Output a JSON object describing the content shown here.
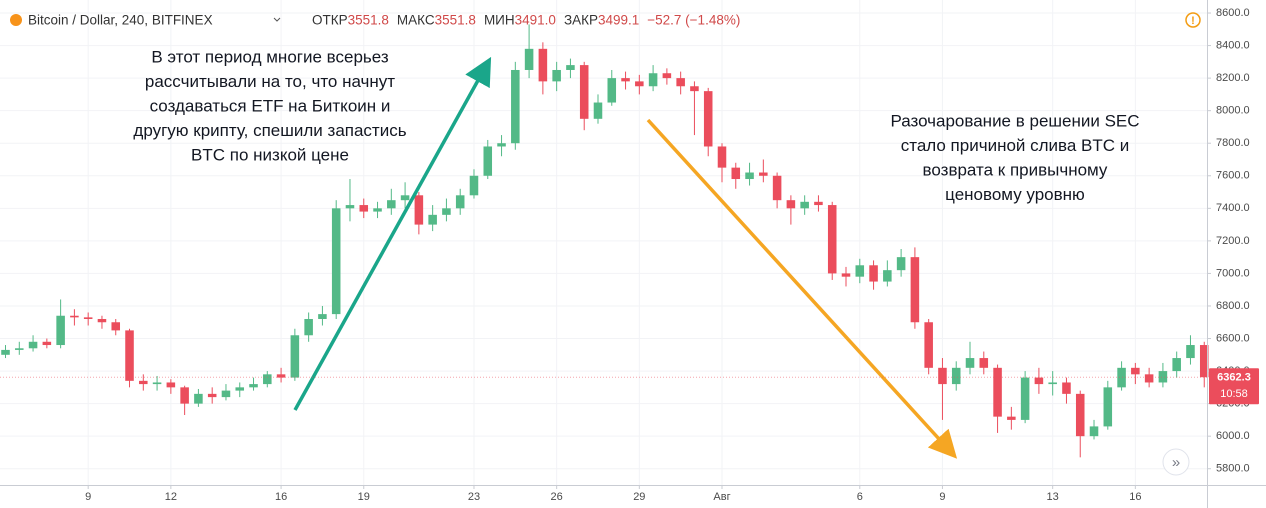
{
  "chart_data": {
    "type": "candlestick",
    "title": "Bitcoin / Dollar, 240, BITFINEX",
    "stats": [
      {
        "label": "ОТКР",
        "value": "3551.8"
      },
      {
        "label": "МАКС",
        "value": "3551.8"
      },
      {
        "label": "МИН",
        "value": "3491.0"
      },
      {
        "label": "ЗАКР",
        "value": "3499.1"
      }
    ],
    "change": "−52.7 (−1.48%)",
    "annotations": [
      {
        "lines": [
          "В этот период многие всерьез",
          "рассчитывали на то, что начнут",
          "создаваться ETF на Биткоин и",
          "другую крипту, спешили запастись",
          "BTC по низкой цене"
        ]
      },
      {
        "lines": [
          "Разочарование в решении SEC",
          "стало причиной слива BTC и",
          "возврата к привычному",
          "ценовому уровню"
        ]
      }
    ],
    "last_price": 6362.3,
    "countdown": "10:58",
    "up_color": "#53b987",
    "down_color": "#eb4d5c",
    "grid": true,
    "xlim": [
      5.8,
      49.6
    ],
    "xticks": [
      {
        "value": 9,
        "label": "9"
      },
      12,
      16,
      19,
      23,
      26,
      29,
      {
        "value": 32,
        "label": "Авг"
      },
      {
        "value": 37,
        "label": "6"
      },
      {
        "value": 40,
        "label": "9"
      },
      {
        "value": 44,
        "label": "13"
      },
      {
        "value": 47,
        "label": "16"
      }
    ],
    "ylim": [
      5700,
      8680
    ],
    "yticks": [
      {
        "value": 5800,
        "label": "5800.0"
      },
      {
        "value": 6000,
        "label": "6000.0"
      },
      {
        "value": 6200,
        "label": "6200.0"
      },
      {
        "value": 6400,
        "label": "6400.0"
      },
      {
        "value": 6600,
        "label": "6600.0"
      },
      {
        "value": 6800,
        "label": "6800.0"
      },
      {
        "value": 7000,
        "label": "7000.0"
      },
      {
        "value": 7200,
        "label": "7200.0"
      },
      {
        "value": 7400,
        "label": "7400.0"
      },
      {
        "value": 7600,
        "label": "7600.0"
      },
      {
        "value": 7800,
        "label": "7800.0"
      },
      {
        "value": 8000,
        "label": "8000.0"
      },
      {
        "value": 8200,
        "label": "8200.0"
      },
      {
        "value": 8400,
        "label": "8400.0"
      },
      {
        "value": 8600,
        "label": "8600.0"
      }
    ],
    "x": [
      6,
      6.5,
      7,
      7.5,
      8,
      8.5,
      9,
      9.5,
      10,
      10.5,
      11,
      11.5,
      12,
      12.5,
      13,
      13.5,
      14,
      14.5,
      15,
      15.5,
      16,
      16.5,
      17,
      17.5,
      18,
      18.5,
      19,
      19.5,
      20,
      20.5,
      21,
      21.5,
      22,
      22.5,
      23,
      23.5,
      24,
      24.5,
      25,
      25.5,
      26,
      26.5,
      27,
      27.5,
      28,
      28.5,
      29,
      29.5,
      30,
      30.5,
      31,
      31.5,
      32,
      32.5,
      33,
      33.5,
      34,
      34.5,
      35,
      35.5,
      36,
      36.5,
      37,
      37.5,
      38,
      38.5,
      39,
      39.5,
      40,
      40.5,
      41,
      41.5,
      42,
      42.5,
      43,
      43.5,
      44,
      44.5,
      45,
      45.5,
      46,
      46.5,
      47,
      47.5,
      48,
      48.5,
      49,
      49.5
    ],
    "open": [
      6500,
      6530,
      6540,
      6580,
      6560,
      6740,
      6730,
      6720,
      6700,
      6650,
      6340,
      6320,
      6330,
      6300,
      6200,
      6260,
      6240,
      6280,
      6300,
      6320,
      6380,
      6360,
      6620,
      6720,
      6750,
      7400,
      7420,
      7380,
      7400,
      7450,
      7480,
      7300,
      7360,
      7400,
      7480,
      7600,
      7780,
      7800,
      8250,
      8380,
      8180,
      8250,
      8280,
      7950,
      8050,
      8200,
      8180,
      8150,
      8230,
      8200,
      8150,
      8120,
      7780,
      7650,
      7580,
      7620,
      7600,
      7450,
      7400,
      7440,
      7420,
      7000,
      6980,
      7050,
      6950,
      7020,
      7100,
      6700,
      6420,
      6320,
      6420,
      6480,
      6420,
      6120,
      6100,
      6360,
      6320,
      6330,
      6260,
      6000,
      6060,
      6300,
      6420,
      6380,
      6330,
      6400,
      6480,
      6560
    ],
    "high": [
      6560,
      6580,
      6620,
      6600,
      6840,
      6780,
      6760,
      6740,
      6720,
      6660,
      6380,
      6370,
      6350,
      6310,
      6290,
      6300,
      6320,
      6330,
      6360,
      6400,
      6420,
      6660,
      6760,
      6800,
      7450,
      7580,
      7460,
      7440,
      7520,
      7560,
      7500,
      7420,
      7460,
      7520,
      7640,
      7820,
      7850,
      8300,
      8530,
      8420,
      8300,
      8320,
      8300,
      8100,
      8250,
      8240,
      8220,
      8280,
      8260,
      8240,
      8180,
      8140,
      7800,
      7680,
      7680,
      7700,
      7620,
      7480,
      7480,
      7480,
      7440,
      7040,
      7090,
      7080,
      7080,
      7150,
      7160,
      6720,
      6480,
      6460,
      6580,
      6520,
      6440,
      6180,
      6400,
      6420,
      6400,
      6360,
      6280,
      6100,
      6340,
      6460,
      6450,
      6420,
      6450,
      6520,
      6620,
      6580
    ],
    "low": [
      6480,
      6500,
      6520,
      6540,
      6540,
      6680,
      6680,
      6660,
      6620,
      6300,
      6280,
      6280,
      6260,
      6130,
      6180,
      6200,
      6220,
      6240,
      6280,
      6300,
      6330,
      6340,
      6580,
      6680,
      6720,
      7320,
      7340,
      7340,
      7360,
      7400,
      7240,
      7260,
      7320,
      7360,
      7460,
      7580,
      7720,
      7760,
      8200,
      8100,
      8120,
      8200,
      7880,
      7920,
      8030,
      8130,
      8100,
      8120,
      8160,
      8100,
      7850,
      7720,
      7560,
      7520,
      7540,
      7560,
      7400,
      7300,
      7360,
      7380,
      6960,
      6920,
      6940,
      6900,
      6920,
      6980,
      6660,
      6380,
      6100,
      6280,
      6380,
      6380,
      6020,
      6040,
      6080,
      6260,
      6250,
      6200,
      5870,
      5980,
      6040,
      6280,
      6320,
      6300,
      6300,
      6360,
      6440,
      6300
    ],
    "close": [
      6530,
      6540,
      6580,
      6560,
      6740,
      6730,
      6720,
      6700,
      6650,
      6340,
      6320,
      6330,
      6300,
      6200,
      6260,
      6240,
      6280,
      6300,
      6320,
      6380,
      6360,
      6620,
      6720,
      6750,
      7400,
      7420,
      7380,
      7400,
      7450,
      7480,
      7300,
      7360,
      7400,
      7480,
      7600,
      7780,
      7800,
      8250,
      8380,
      8180,
      8250,
      8280,
      7950,
      8050,
      8200,
      8180,
      8150,
      8230,
      8200,
      8150,
      8120,
      7780,
      7650,
      7580,
      7620,
      7600,
      7450,
      7400,
      7440,
      7420,
      7000,
      6980,
      7050,
      6950,
      7020,
      7100,
      6700,
      6420,
      6320,
      6420,
      6480,
      6420,
      6120,
      6100,
      6360,
      6320,
      6330,
      6260,
      6000,
      6060,
      6300,
      6420,
      6380,
      6330,
      6400,
      6480,
      6560,
      6362.3
    ]
  }
}
